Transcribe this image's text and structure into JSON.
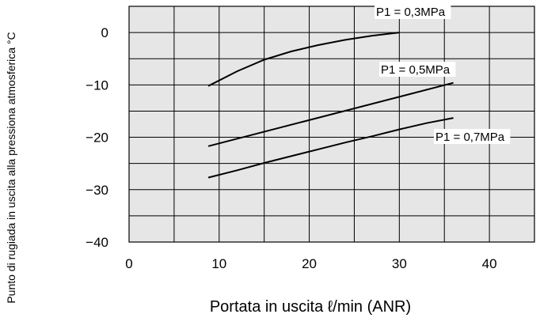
{
  "chart_data": {
    "type": "line",
    "title": "",
    "xlabel": "Portata in uscita ℓ/min (ANR)",
    "ylabel": "Punto di rugiada in uscita alla pressiona atmosferica °C",
    "xlim": [
      0,
      45
    ],
    "ylim": [
      -40,
      5
    ],
    "x_ticks": [
      "0",
      "10",
      "20",
      "30",
      "40"
    ],
    "y_ticks": [
      "0",
      "−10",
      "−20",
      "−30",
      "−40"
    ],
    "grid": true,
    "legend": "inline labels",
    "series": [
      {
        "name": "P1 = 0,3MPa",
        "x": [
          8.8,
          12,
          15,
          18,
          21,
          24,
          27,
          30
        ],
        "y": [
          -10.2,
          -7.4,
          -5.2,
          -3.6,
          -2.4,
          -1.4,
          -0.6,
          0
        ]
      },
      {
        "name": "P1 = 0,5MPa",
        "x": [
          8.8,
          36
        ],
        "y": [
          -21.7,
          -9.6
        ]
      },
      {
        "name": "P1 = 0,7MPa",
        "x": [
          8.8,
          12,
          15,
          18,
          21,
          24,
          27,
          30,
          33,
          36
        ],
        "y": [
          -27.7,
          -26.3,
          -24.9,
          -23.6,
          -22.3,
          -21.0,
          -19.8,
          -18.5,
          -17.3,
          -16.3
        ]
      }
    ]
  }
}
